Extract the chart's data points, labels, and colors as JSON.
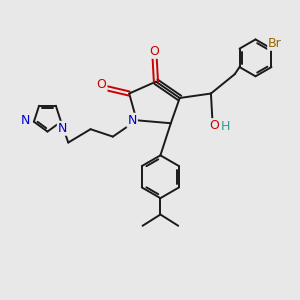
{
  "bg_color": "#e8e8e8",
  "bond_color": "#1a1a1a",
  "bond_width": 1.4,
  "atoms": {
    "N": {
      "color": "#0000cc"
    },
    "O": {
      "color": "#cc0000"
    },
    "Br": {
      "color": "#996600"
    },
    "OH_O": {
      "color": "#cc0000"
    },
    "OH_H": {
      "color": "#339999"
    }
  },
  "fig_size": [
    3.0,
    3.0
  ],
  "dpi": 100
}
